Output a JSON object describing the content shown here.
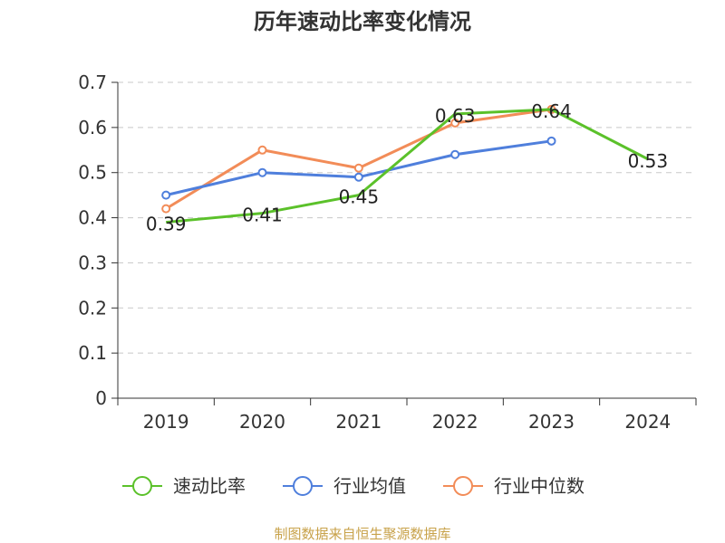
{
  "chart_data": {
    "type": "line",
    "title": "历年速动比率变化情况",
    "categories": [
      "2019",
      "2020",
      "2021",
      "2022",
      "2023",
      "2024"
    ],
    "ylim": [
      0,
      0.7
    ],
    "yticks": [
      "0",
      "0.1",
      "0.2",
      "0.3",
      "0.4",
      "0.5",
      "0.6",
      "0.7"
    ],
    "grid": true,
    "legend_position": "bottom",
    "series": [
      {
        "name": "速动比率",
        "color": "#5bc12a",
        "values": [
          0.39,
          0.41,
          0.45,
          0.63,
          0.64,
          0.53
        ],
        "labels": [
          "0.39",
          "0.41",
          "0.45",
          "0.63",
          "0.64",
          "0.53"
        ]
      },
      {
        "name": "行业均值",
        "color": "#4f7fdc",
        "values": [
          0.45,
          0.5,
          0.49,
          0.54,
          0.57,
          null
        ]
      },
      {
        "name": "行业中位数",
        "color": "#f28c58",
        "values": [
          0.42,
          0.55,
          0.51,
          0.61,
          0.64,
          null
        ]
      }
    ]
  },
  "source": "制图数据来自恒生聚源数据库"
}
